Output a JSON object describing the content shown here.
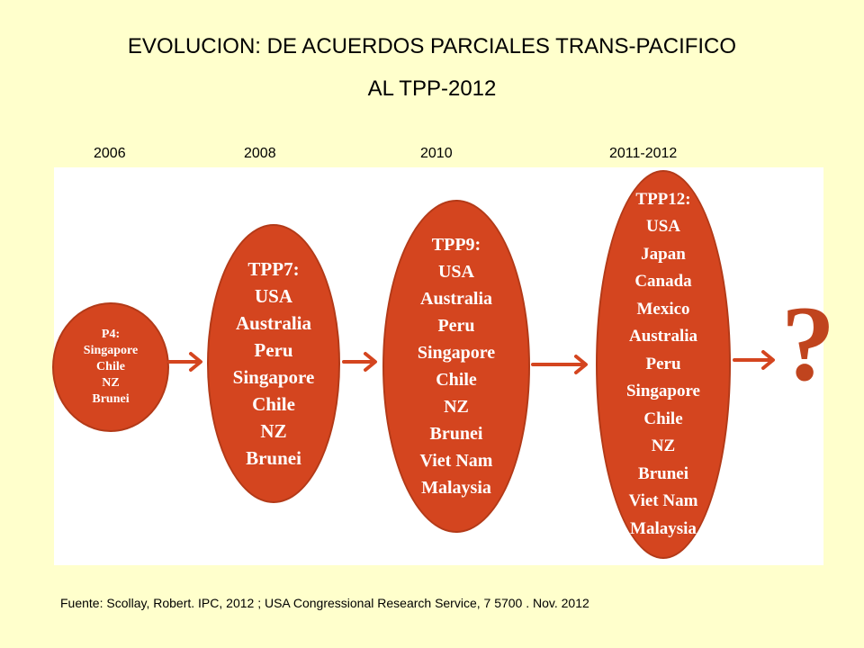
{
  "title": {
    "line1": "EVOLUCION: DE ACUERDOS PARCIALES TRANS-PACIFICO",
    "line2": "AL TPP-2012"
  },
  "years": [
    "2006",
    "2008",
    "2010",
    "2011-2012"
  ],
  "stages": [
    {
      "heading": "P4:",
      "members": [
        "Singapore",
        "Chile",
        "NZ",
        "Brunei"
      ]
    },
    {
      "heading": "TPP7:",
      "members": [
        "USA",
        "Australia",
        "Peru",
        "Singapore",
        "Chile",
        "NZ",
        "Brunei"
      ]
    },
    {
      "heading": "TPP9:",
      "members": [
        "USA",
        "Australia",
        "Peru",
        "Singapore",
        "Chile",
        "NZ",
        "Brunei",
        "Viet Nam",
        "Malaysia"
      ]
    },
    {
      "heading": "TPP12:",
      "members": [
        "USA",
        "Japan",
        "Canada",
        "Mexico",
        "Australia",
        "Peru",
        "Singapore",
        "Chile",
        "NZ",
        "Brunei",
        "Viet Nam",
        "Malaysia"
      ]
    }
  ],
  "future": "?",
  "source": "Fuente: Scollay,  Robert. IPC, 2012 ;  USA Congressional Research Service,  7 5700 .  Nov. 2012",
  "colors": {
    "background": "#ffffcc",
    "oval": "#d4451f",
    "arrow": "#d4451f",
    "text_on_oval": "#ffffff"
  }
}
